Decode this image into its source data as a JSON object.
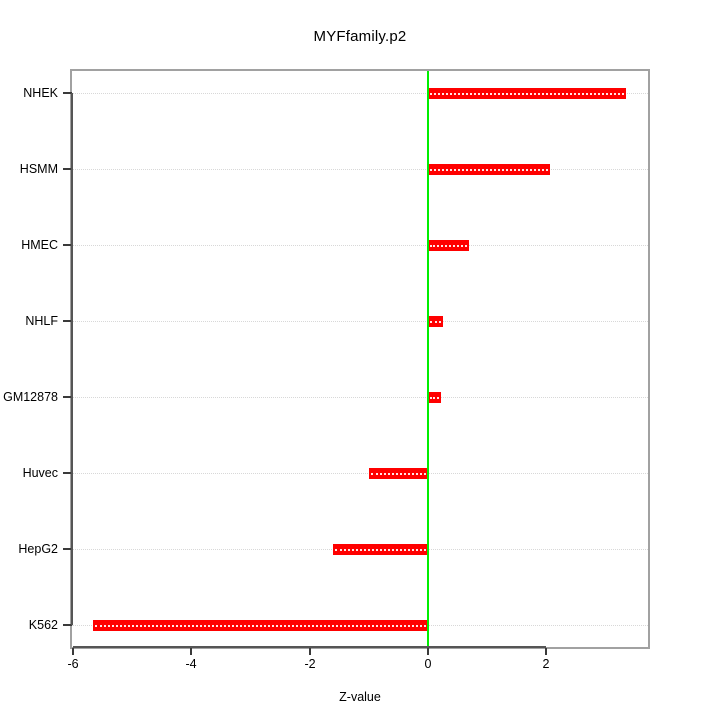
{
  "title": "MYFfamily.p2",
  "chart_data": {
    "type": "bar",
    "orientation": "horizontal",
    "title": "MYFfamily.p2",
    "xlabel": "Z-value",
    "ylabel": "",
    "categories": [
      "NHEK",
      "HSMM",
      "HMEC",
      "NHLF",
      "GM12878",
      "Huvec",
      "HepG2",
      "K562"
    ],
    "values": [
      3.34,
      2.07,
      0.69,
      0.25,
      0.22,
      -0.99,
      -1.6,
      -5.67
    ],
    "xlim": [
      -6.02,
      3.72
    ],
    "xticks": [
      -6,
      -4,
      -2,
      0,
      2
    ],
    "xtick_labels": [
      "-6",
      "-4",
      "-2",
      "0",
      "2"
    ],
    "zero_line_at": 0,
    "grid": "horizontal-dotted-per-category",
    "legend": null,
    "colors": {
      "bar": "#ff0000",
      "zero_line": "#00ee00",
      "grid_line": "#d8d8d8",
      "box_border": "#a1a1a1",
      "axis_line": "#555555",
      "tick": "#3a3a3a",
      "text": "#000000",
      "background": "#ffffff"
    }
  }
}
